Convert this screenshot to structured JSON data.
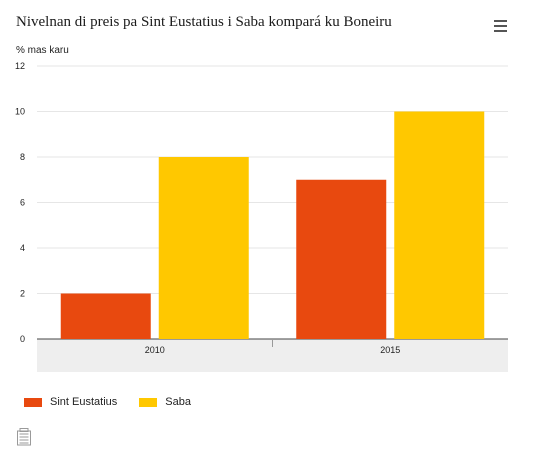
{
  "colors": {
    "series_1": "#e8490f",
    "series_2": "#ffc800",
    "axis_band": "#eeeeee",
    "grid": "#e6e6e6"
  },
  "header": {
    "menu_icon": "hamburger-menu-icon"
  },
  "footer": {
    "logo_icon": "cbs-logo-icon"
  },
  "chart_data": {
    "type": "bar",
    "title": "Nivelnan di preis pa Sint Eustatius i Saba kompará ku Boneiru",
    "ylabel": "% mas karu",
    "xlabel": "",
    "categories": [
      "2010",
      "2015"
    ],
    "series": [
      {
        "name": "Sint Eustatius",
        "values": [
          2,
          7
        ]
      },
      {
        "name": "Saba",
        "values": [
          8,
          10
        ]
      }
    ],
    "ylim": [
      0,
      12
    ],
    "yticks": [
      0,
      2,
      4,
      6,
      8,
      10,
      12
    ],
    "grid": true,
    "legend_position": "bottom-left"
  }
}
